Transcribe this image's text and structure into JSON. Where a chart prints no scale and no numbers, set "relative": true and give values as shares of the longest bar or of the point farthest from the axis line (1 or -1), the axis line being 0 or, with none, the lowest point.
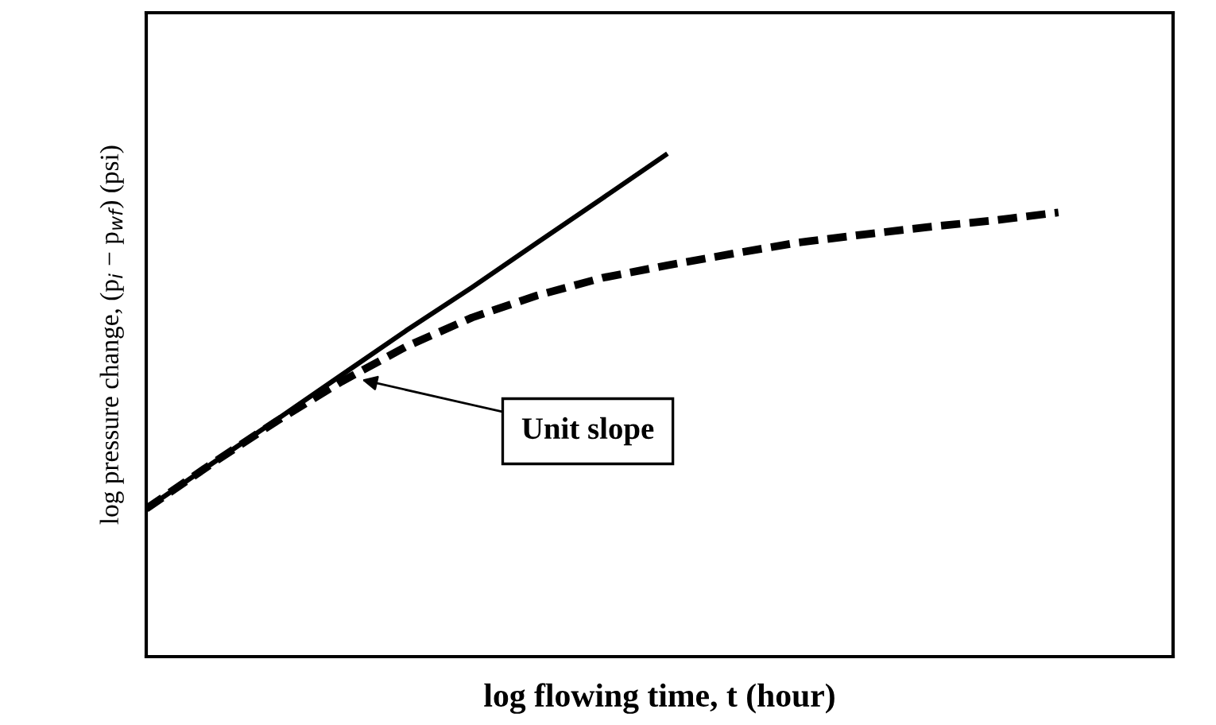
{
  "chart_data": {
    "type": "line",
    "relative": true,
    "xlabel": "log flowing time, t (hour)",
    "ylabel": "log pressure change, (p$_{i}$ − p$_{wf}$) (psi)",
    "categories": [
      null,
      null,
      null,
      null,
      null,
      null,
      null,
      null,
      null,
      null,
      null,
      null,
      null,
      null,
      null,
      null
    ],
    "series": [
      {
        "color": "#000000",
        "line_style": "solid",
        "values": [
          0.294,
          0.383,
          0.471,
          0.56,
          0.649,
          0.734,
          0.823,
          0.911,
          1.0,
          null,
          null,
          null,
          null,
          null,
          null,
          null
        ]
      },
      {
        "color": "#000000",
        "line_style": "dashed",
        "values": [
          0.294,
          0.383,
          0.468,
          0.547,
          0.617,
          0.674,
          0.718,
          0.753,
          0.778,
          0.801,
          0.823,
          0.839,
          0.854,
          0.867,
          0.883,
          null
        ]
      }
    ],
    "annotations": [
      "Unit slope"
    ],
    "legend": false,
    "tick_labels": false,
    "marker": "none"
  }
}
